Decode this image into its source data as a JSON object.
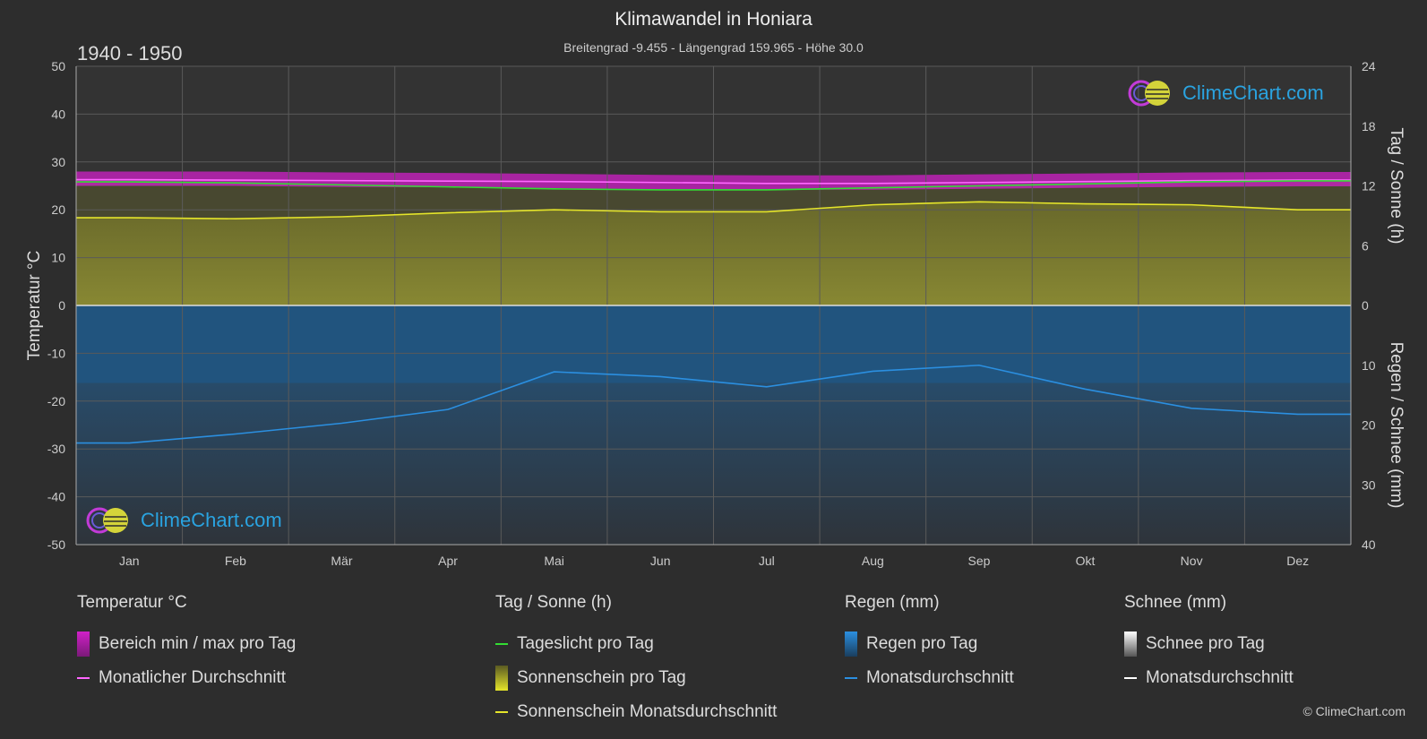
{
  "header": {
    "title": "Klimawandel in Honiara",
    "subtitle": "Breitengrad -9.455 - Längengrad 159.965 - Höhe 30.0",
    "period": "1940 - 1950"
  },
  "logo_text": "ClimeChart.com",
  "copyright": "© ClimeChart.com",
  "colors": {
    "background": "#2d2d2d",
    "temp_range": "#d020c8",
    "temp_avg": "#ff66ff",
    "daylight": "#33dd33",
    "sunshine_fill": "#8c8c33",
    "sunshine_avg": "#e5e52a",
    "rain_fill": "#1f5f96",
    "rain_avg": "#2b8fe0",
    "snow_avg": "#ffffff"
  },
  "legend": {
    "temperature": {
      "title": "Temperatur °C",
      "items": [
        "Bereich min / max pro Tag",
        "Monatlicher Durchschnitt"
      ]
    },
    "sun": {
      "title": "Tag / Sonne (h)",
      "items": [
        "Tageslicht pro Tag",
        "Sonnenschein pro Tag",
        "Sonnenschein Monatsdurchschnitt"
      ]
    },
    "rain": {
      "title": "Regen (mm)",
      "items": [
        "Regen pro Tag",
        "Monatsdurchschnitt"
      ]
    },
    "snow": {
      "title": "Schnee (mm)",
      "items": [
        "Schnee pro Tag",
        "Monatsdurchschnitt"
      ]
    }
  },
  "chart_data": {
    "type": "line",
    "categories": [
      "Jan",
      "Feb",
      "Mär",
      "Apr",
      "Mai",
      "Jun",
      "Jul",
      "Aug",
      "Sep",
      "Okt",
      "Nov",
      "Dez"
    ],
    "y_left": {
      "label": "Temperatur °C",
      "range": [
        -50,
        50
      ],
      "ticks": [
        50,
        40,
        30,
        20,
        10,
        0,
        -10,
        -20,
        -30,
        -40,
        -50
      ]
    },
    "y_right_top": {
      "label": "Tag / Sonne (h)",
      "range": [
        0,
        24
      ],
      "ticks": [
        24,
        18,
        12,
        6,
        0
      ]
    },
    "y_right_bottom": {
      "label": "Regen / Schnee (mm)",
      "range": [
        0,
        40
      ],
      "ticks": [
        0,
        10,
        20,
        30,
        40
      ]
    },
    "series": [
      {
        "name": "Monatlicher Durchschnitt",
        "unit": "°C",
        "values": [
          26.3,
          26.2,
          26.1,
          26.0,
          25.9,
          25.7,
          25.5,
          25.5,
          25.7,
          25.9,
          26.1,
          26.2
        ]
      },
      {
        "name": "Bereich min / max pro Tag (min)",
        "unit": "°C",
        "values": [
          25.0,
          25.0,
          24.8,
          24.7,
          24.5,
          24.3,
          24.2,
          24.2,
          24.4,
          24.6,
          24.8,
          24.9
        ]
      },
      {
        "name": "Bereich min / max pro Tag (max)",
        "unit": "°C",
        "values": [
          28.0,
          28.0,
          27.8,
          27.7,
          27.5,
          27.3,
          27.2,
          27.2,
          27.4,
          27.6,
          27.8,
          27.9
        ]
      },
      {
        "name": "Tageslicht pro Tag",
        "unit": "h",
        "values": [
          12.4,
          12.3,
          12.1,
          11.9,
          11.7,
          11.6,
          11.6,
          11.8,
          12.0,
          12.2,
          12.4,
          12.5
        ]
      },
      {
        "name": "Sonnenschein Monatsdurchschnitt",
        "unit": "h",
        "values": [
          8.8,
          8.7,
          8.9,
          9.3,
          9.6,
          9.4,
          9.4,
          10.1,
          10.4,
          10.2,
          10.1,
          9.6
        ]
      },
      {
        "name": "Regen Monatsdurchschnitt",
        "unit": "mm",
        "values": [
          23.0,
          21.5,
          19.7,
          17.4,
          11.1,
          11.9,
          13.6,
          11.0,
          10.0,
          14.0,
          17.2,
          18.2
        ]
      },
      {
        "name": "Schnee Monatsdurchschnitt",
        "unit": "mm",
        "values": [
          0,
          0,
          0,
          0,
          0,
          0,
          0,
          0,
          0,
          0,
          0,
          0
        ]
      }
    ]
  }
}
